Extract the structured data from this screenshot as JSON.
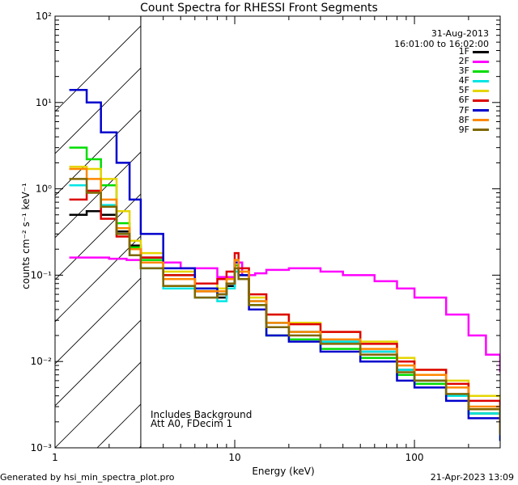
{
  "chart_data": {
    "type": "line",
    "title": "Count Spectra for RHESSI Front Segments",
    "xlabel": "Energy (keV)",
    "ylabel": "counts cm⁻² s⁻¹ keV⁻¹",
    "xscale": "log",
    "yscale": "log",
    "xlim": [
      1,
      300
    ],
    "ylim": [
      0.001,
      100
    ],
    "x_tick_labels": [
      "1",
      "10",
      "100"
    ],
    "y_tick_labels": [
      "10⁻³",
      "10⁻²",
      "10⁻¹",
      "10⁰",
      "10¹",
      "10²"
    ],
    "date": "31-Aug-2013",
    "time_range": "16:01:00 to 16:02:00",
    "annotation_lines": [
      "Includes Background",
      "Att A0, FDecim 1"
    ],
    "shaded_region_kev": [
      1,
      3
    ],
    "footer_left": "Generated by hsi_min_spectra_plot.pro",
    "footer_right": "21-Apr-2023 13:09",
    "series": [
      {
        "name": "1F",
        "color": "#000000",
        "x": [
          1.2,
          1.5,
          1.8,
          2.2,
          2.6,
          3.0,
          4,
          6,
          8,
          9,
          10,
          10.5,
          12,
          15,
          20,
          30,
          50,
          80,
          100,
          150,
          200,
          300
        ],
        "y": [
          0.5,
          0.55,
          0.5,
          0.32,
          0.22,
          0.16,
          0.09,
          0.065,
          0.055,
          0.075,
          0.13,
          0.1,
          0.05,
          0.028,
          0.022,
          0.017,
          0.013,
          0.008,
          0.006,
          0.004,
          0.0025,
          0.0015
        ]
      },
      {
        "name": "2F",
        "color": "#ff00ff",
        "x": [
          1.2,
          1.5,
          2,
          2.5,
          3,
          5,
          8,
          10,
          11,
          13,
          15,
          20,
          30,
          40,
          60,
          80,
          100,
          150,
          200,
          250,
          300
        ],
        "y": [
          0.16,
          0.16,
          0.155,
          0.15,
          0.14,
          0.12,
          0.095,
          0.14,
          0.1,
          0.105,
          0.115,
          0.12,
          0.11,
          0.1,
          0.085,
          0.07,
          0.055,
          0.035,
          0.02,
          0.012,
          0.0075
        ]
      },
      {
        "name": "3F",
        "color": "#00dd00",
        "x": [
          1.2,
          1.5,
          1.8,
          2.2,
          2.6,
          3.0,
          4,
          6,
          8,
          9,
          10,
          10.5,
          12,
          15,
          20,
          30,
          50,
          80,
          100,
          150,
          200,
          300
        ],
        "y": [
          3.0,
          2.2,
          1.1,
          0.4,
          0.21,
          0.15,
          0.1,
          0.07,
          0.06,
          0.08,
          0.13,
          0.1,
          0.045,
          0.02,
          0.018,
          0.014,
          0.011,
          0.007,
          0.0055,
          0.004,
          0.0025,
          0.0015
        ]
      },
      {
        "name": "4F",
        "color": "#00e5e5",
        "x": [
          1.2,
          1.5,
          1.8,
          2.2,
          2.6,
          3.0,
          4,
          6,
          8,
          9,
          10,
          10.5,
          12,
          15,
          20,
          30,
          50,
          80,
          100,
          150,
          200,
          300
        ],
        "y": [
          1.1,
          0.95,
          0.65,
          0.3,
          0.17,
          0.12,
          0.07,
          0.055,
          0.05,
          0.07,
          0.11,
          0.09,
          0.05,
          0.028,
          0.022,
          0.017,
          0.013,
          0.008,
          0.006,
          0.004,
          0.0025,
          0.0012
        ]
      },
      {
        "name": "5F",
        "color": "#e5d500",
        "x": [
          1.2,
          1.5,
          1.8,
          2.2,
          2.6,
          3.0,
          4,
          6,
          8,
          9,
          10,
          10.5,
          12,
          15,
          20,
          30,
          50,
          80,
          100,
          150,
          200,
          300
        ],
        "y": [
          1.8,
          1.7,
          1.3,
          0.55,
          0.25,
          0.18,
          0.11,
          0.08,
          0.07,
          0.09,
          0.14,
          0.11,
          0.055,
          0.035,
          0.028,
          0.022,
          0.017,
          0.011,
          0.008,
          0.006,
          0.004,
          0.0022
        ]
      },
      {
        "name": "6F",
        "color": "#dd0000",
        "x": [
          1.2,
          1.5,
          1.8,
          2.2,
          2.6,
          3.0,
          4,
          6,
          8,
          9,
          10,
          10.5,
          12,
          15,
          20,
          30,
          50,
          80,
          100,
          150,
          200,
          300
        ],
        "y": [
          0.75,
          0.95,
          0.45,
          0.28,
          0.2,
          0.16,
          0.1,
          0.08,
          0.09,
          0.11,
          0.18,
          0.12,
          0.06,
          0.035,
          0.027,
          0.022,
          0.016,
          0.01,
          0.008,
          0.0055,
          0.0035,
          0.0018
        ]
      },
      {
        "name": "7F",
        "color": "#0000cc",
        "x": [
          1.2,
          1.5,
          1.8,
          2.2,
          2.6,
          3.0,
          4,
          6,
          8,
          9,
          10,
          10.5,
          12,
          15,
          20,
          30,
          50,
          80,
          100,
          150,
          200,
          300
        ],
        "y": [
          14.0,
          10.0,
          4.5,
          2.0,
          0.75,
          0.3,
          0.12,
          0.07,
          0.06,
          0.08,
          0.14,
          0.1,
          0.04,
          0.02,
          0.017,
          0.013,
          0.01,
          0.006,
          0.005,
          0.0035,
          0.0022,
          0.0012
        ]
      },
      {
        "name": "8F",
        "color": "#ff8800",
        "x": [
          1.2,
          1.5,
          1.8,
          2.2,
          2.6,
          3.0,
          4,
          6,
          8,
          9,
          10,
          10.5,
          12,
          15,
          20,
          30,
          50,
          80,
          100,
          150,
          200,
          300
        ],
        "y": [
          1.7,
          1.3,
          0.75,
          0.35,
          0.2,
          0.14,
          0.09,
          0.065,
          0.065,
          0.09,
          0.15,
          0.11,
          0.05,
          0.028,
          0.022,
          0.018,
          0.014,
          0.009,
          0.007,
          0.005,
          0.003,
          0.0016
        ]
      },
      {
        "name": "9F",
        "color": "#806600",
        "x": [
          1.2,
          1.5,
          1.8,
          2.2,
          2.6,
          3.0,
          4,
          6,
          8,
          9,
          10,
          10.5,
          12,
          15,
          20,
          30,
          50,
          80,
          100,
          150,
          200,
          300
        ],
        "y": [
          1.3,
          0.9,
          0.62,
          0.3,
          0.17,
          0.12,
          0.075,
          0.055,
          0.06,
          0.08,
          0.12,
          0.09,
          0.045,
          0.025,
          0.02,
          0.016,
          0.012,
          0.0075,
          0.006,
          0.0042,
          0.0028,
          0.0014
        ]
      }
    ]
  }
}
